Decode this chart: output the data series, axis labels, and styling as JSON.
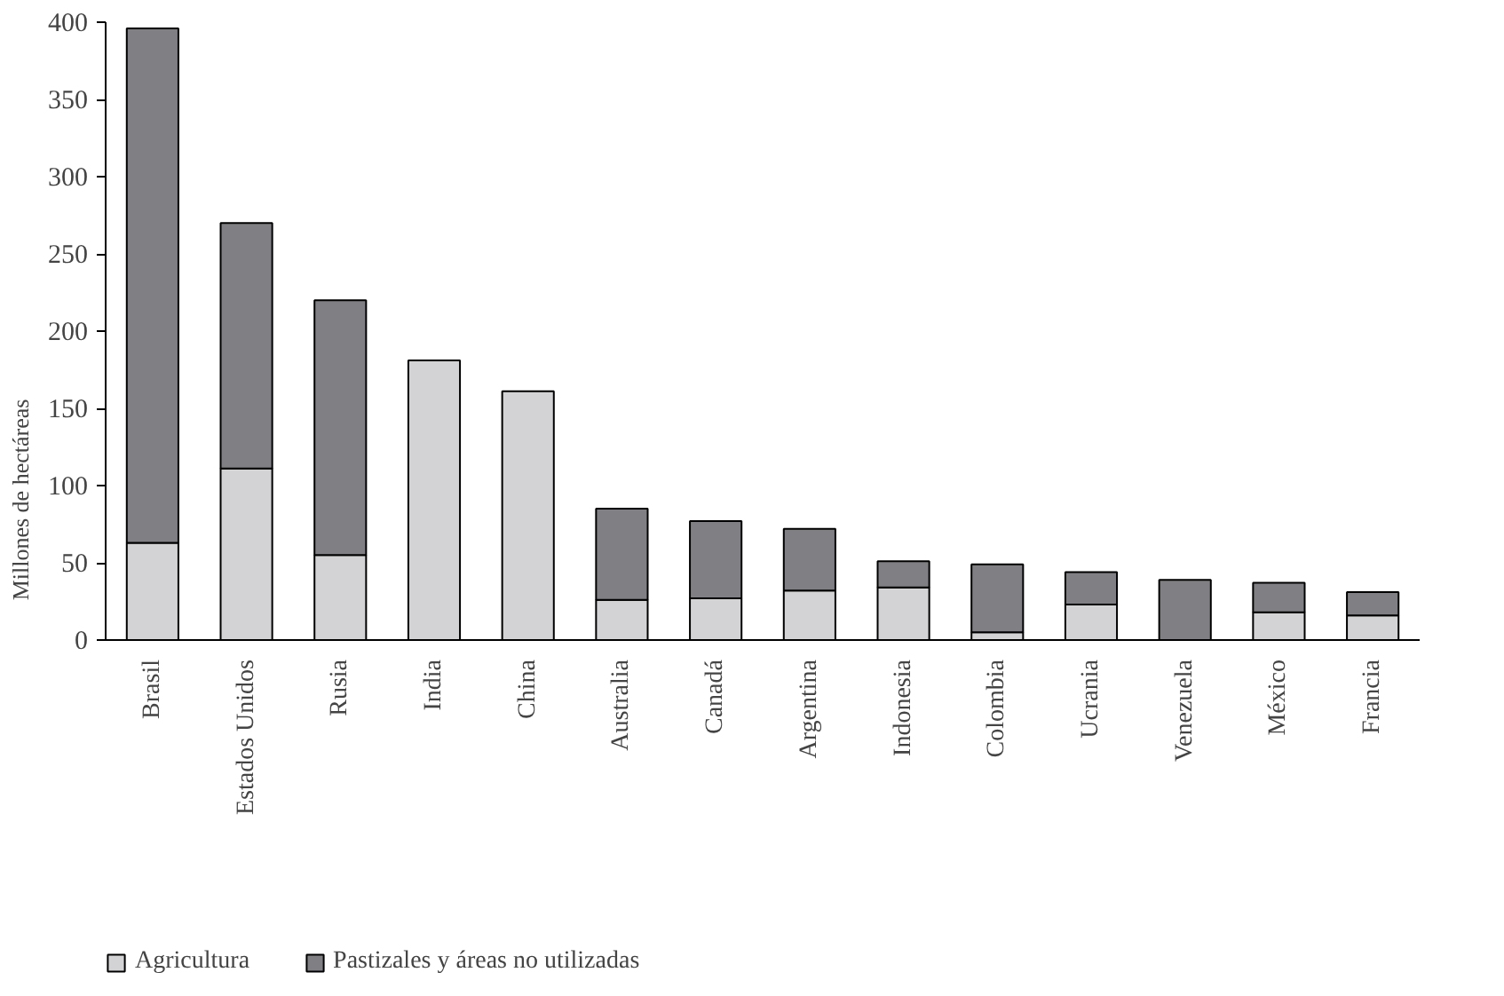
{
  "chart_data": {
    "type": "bar",
    "stacked": true,
    "ylabel": "Millones de hectáreas",
    "categories": [
      "Brasil",
      "Estados Unidos",
      "Rusia",
      "India",
      "China",
      "Australia",
      "Canadá",
      "Argentina",
      "Indonesia",
      "Colombia",
      "Ucrania",
      "Venezuela",
      "México",
      "Francia"
    ],
    "series": [
      {
        "name": "Agricultura",
        "color": "#d3d3d5",
        "values": [
          63,
          111,
          55,
          181,
          161,
          26,
          27,
          32,
          34,
          5,
          23,
          0,
          18,
          16
        ]
      },
      {
        "name": "Pastizales y áreas no utilizadas",
        "color": "#808084",
        "values": [
          333,
          159,
          165,
          0,
          0,
          59,
          50,
          40,
          17,
          44,
          21,
          39,
          19,
          15
        ]
      }
    ],
    "ylim": [
      0,
      400
    ],
    "yticks": [
      0,
      50,
      100,
      150,
      200,
      250,
      300,
      350,
      400
    ],
    "grid": false,
    "legend": "bottom left"
  }
}
